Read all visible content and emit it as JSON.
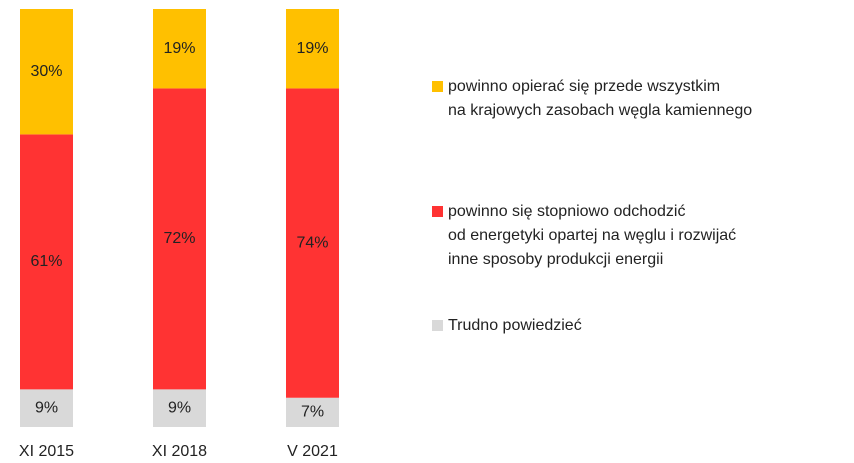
{
  "chart_data": {
    "type": "stacked_bar",
    "categories": [
      "XI 2015",
      "XI 2018",
      "V 2021"
    ],
    "series": [
      {
        "name": "Trudno powiedzieć",
        "color": "#d9d9d9",
        "values": [
          9,
          9,
          7
        ],
        "value_labels": [
          "9%",
          "9%",
          "7%"
        ]
      },
      {
        "name": "powinno się stopniowo odchodzić\nod energetyki opartej na węglu i rozwijać\ninne sposoby produkcji energii",
        "color": "#ff3333",
        "values": [
          61,
          72,
          74
        ],
        "value_labels": [
          "61%",
          "72%",
          "74%"
        ]
      },
      {
        "name": "powinno opierać się przede wszystkim\nna krajowych zasobach węgla kamiennego",
        "color": "#ffc000",
        "values": [
          30,
          19,
          19
        ],
        "value_labels": [
          "30%",
          "19%",
          "19%"
        ]
      }
    ]
  }
}
